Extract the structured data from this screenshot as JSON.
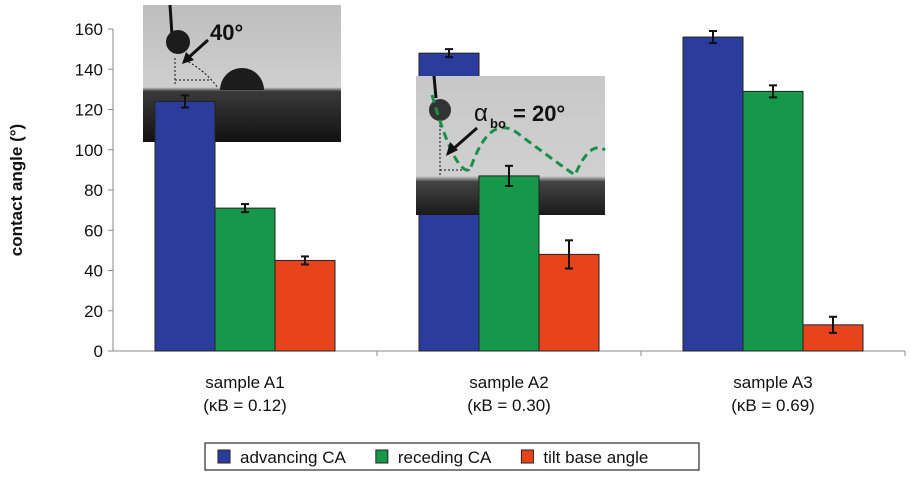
{
  "chart_data": {
    "type": "bar",
    "y_label": "contact angle (°)",
    "categories": [
      [
        "sample A1",
        "(κB = 0.12)"
      ],
      [
        "sample A2",
        "(κB = 0.30)"
      ],
      [
        "sample A3",
        "(κB = 0.69)"
      ]
    ],
    "series": [
      {
        "name": "advancing CA",
        "color": "#2a3c9c",
        "values": [
          124,
          148,
          156
        ],
        "errors": [
          3,
          2,
          3
        ]
      },
      {
        "name": "receding CA",
        "color": "#16984a",
        "values": [
          71,
          87,
          129
        ],
        "errors": [
          2,
          5,
          3
        ]
      },
      {
        "name": "tilt base angle",
        "color": "#e8441c",
        "values": [
          45,
          48,
          13
        ],
        "errors": [
          2,
          7,
          4
        ]
      }
    ],
    "ylim": [
      0,
      160
    ],
    "yticks": [
      0,
      20,
      40,
      60,
      80,
      100,
      120,
      140,
      160
    ],
    "grid": false,
    "annotations": {
      "angle_1": "40°",
      "angle_2": {
        "symbol": "α",
        "subscript": "bo",
        "text": "= 20°"
      }
    }
  }
}
